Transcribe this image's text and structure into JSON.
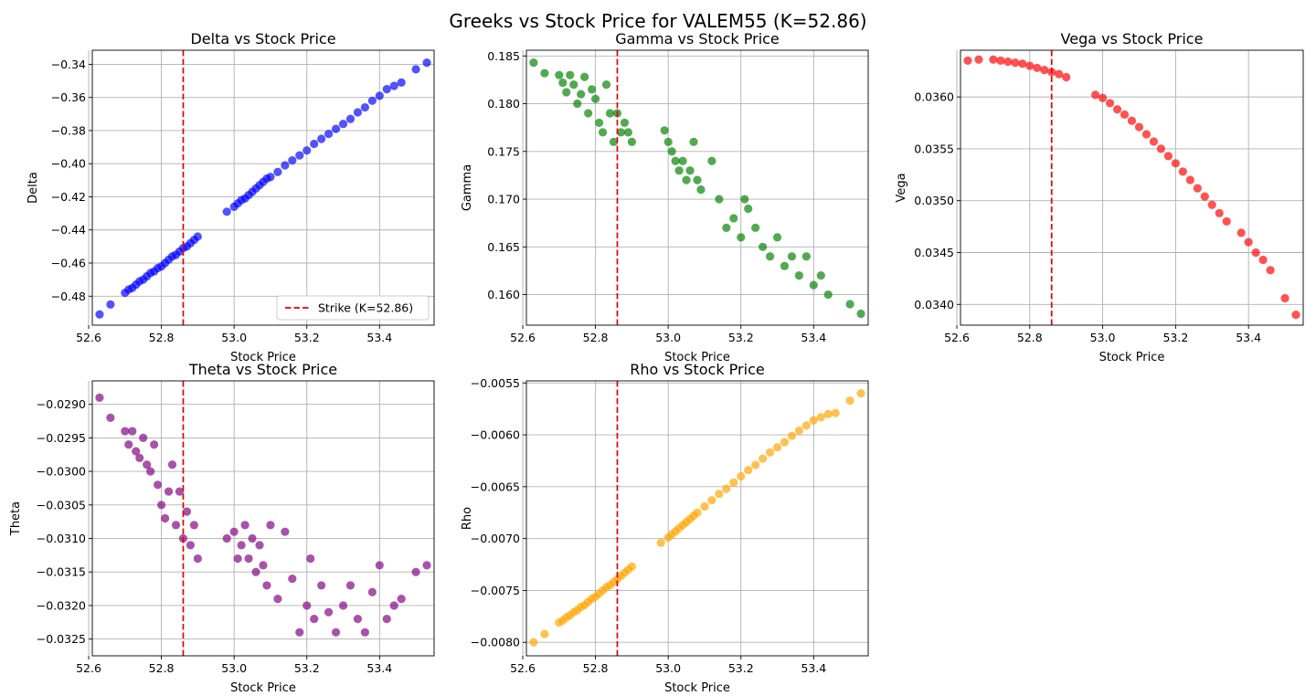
{
  "figure": {
    "title": "Greeks vs Stock Price for VALEM55 (K=52.86)",
    "strike": 52.86,
    "legend_label": "Strike (K=52.86)",
    "legend_location": "lower right"
  },
  "chart_data": [
    {
      "type": "scatter",
      "title": "Delta vs Stock Price",
      "xlabel": "Stock Price",
      "ylabel": "Delta",
      "color": "#0000ff",
      "xlim": [
        52.61,
        53.55
      ],
      "ylim": [
        -0.4975,
        -0.3315
      ],
      "xticks": [
        52.6,
        52.8,
        53.0,
        53.2,
        53.4
      ],
      "xtick_labels": [
        "52.6",
        "52.8",
        "53.0",
        "53.2",
        "53.4"
      ],
      "yticks": [
        -0.48,
        -0.46,
        -0.44,
        -0.42,
        -0.4,
        -0.38,
        -0.36,
        -0.34
      ],
      "ytick_labels": [
        "−0.48",
        "−0.46",
        "−0.44",
        "−0.42",
        "−0.40",
        "−0.38",
        "−0.36",
        "−0.34"
      ],
      "grid": true,
      "legend": true,
      "points": [
        [
          52.63,
          -0.491
        ],
        [
          52.66,
          -0.485
        ],
        [
          52.7,
          -0.478
        ],
        [
          52.71,
          -0.476
        ],
        [
          52.72,
          -0.475
        ],
        [
          52.73,
          -0.473
        ],
        [
          52.74,
          -0.471
        ],
        [
          52.75,
          -0.47
        ],
        [
          52.76,
          -0.468
        ],
        [
          52.77,
          -0.466
        ],
        [
          52.78,
          -0.465
        ],
        [
          52.79,
          -0.463
        ],
        [
          52.8,
          -0.462
        ],
        [
          52.81,
          -0.46
        ],
        [
          52.82,
          -0.458
        ],
        [
          52.83,
          -0.456
        ],
        [
          52.84,
          -0.455
        ],
        [
          52.85,
          -0.453
        ],
        [
          52.86,
          -0.451
        ],
        [
          52.87,
          -0.45
        ],
        [
          52.88,
          -0.448
        ],
        [
          52.89,
          -0.446
        ],
        [
          52.9,
          -0.444
        ],
        [
          52.98,
          -0.429
        ],
        [
          53.0,
          -0.426
        ],
        [
          53.01,
          -0.424
        ],
        [
          53.02,
          -0.422
        ],
        [
          53.03,
          -0.421
        ],
        [
          53.04,
          -0.419
        ],
        [
          53.05,
          -0.417
        ],
        [
          53.06,
          -0.415
        ],
        [
          53.07,
          -0.413
        ],
        [
          53.08,
          -0.411
        ],
        [
          53.09,
          -0.409
        ],
        [
          53.1,
          -0.408
        ],
        [
          53.12,
          -0.405
        ],
        [
          53.14,
          -0.401
        ],
        [
          53.16,
          -0.398
        ],
        [
          53.18,
          -0.395
        ],
        [
          53.2,
          -0.392
        ],
        [
          53.22,
          -0.388
        ],
        [
          53.24,
          -0.385
        ],
        [
          53.26,
          -0.382
        ],
        [
          53.28,
          -0.379
        ],
        [
          53.3,
          -0.376
        ],
        [
          53.32,
          -0.373
        ],
        [
          53.34,
          -0.369
        ],
        [
          53.36,
          -0.366
        ],
        [
          53.38,
          -0.362
        ],
        [
          53.4,
          -0.359
        ],
        [
          53.42,
          -0.355
        ],
        [
          53.44,
          -0.353
        ],
        [
          53.46,
          -0.351
        ],
        [
          53.5,
          -0.343
        ],
        [
          53.53,
          -0.339
        ]
      ]
    },
    {
      "type": "scatter",
      "title": "Gamma vs Stock Price",
      "xlabel": "Stock Price",
      "ylabel": "Gamma",
      "color": "#008000",
      "xlim": [
        52.61,
        53.55
      ],
      "ylim": [
        0.1568,
        0.1856
      ],
      "xticks": [
        52.6,
        52.8,
        53.0,
        53.2,
        53.4
      ],
      "xtick_labels": [
        "52.6",
        "52.8",
        "53.0",
        "53.2",
        "53.4"
      ],
      "yticks": [
        0.16,
        0.165,
        0.17,
        0.175,
        0.18,
        0.185
      ],
      "ytick_labels": [
        "0.160",
        "0.165",
        "0.170",
        "0.175",
        "0.180",
        "0.185"
      ],
      "grid": true,
      "legend": false,
      "points": [
        [
          52.63,
          0.1843
        ],
        [
          52.66,
          0.1832
        ],
        [
          52.7,
          0.183
        ],
        [
          52.71,
          0.1822
        ],
        [
          52.72,
          0.1812
        ],
        [
          52.73,
          0.183
        ],
        [
          52.74,
          0.182
        ],
        [
          52.75,
          0.18
        ],
        [
          52.76,
          0.181
        ],
        [
          52.77,
          0.1828
        ],
        [
          52.78,
          0.179
        ],
        [
          52.79,
          0.1815
        ],
        [
          52.8,
          0.1805
        ],
        [
          52.81,
          0.178
        ],
        [
          52.82,
          0.177
        ],
        [
          52.83,
          0.182
        ],
        [
          52.84,
          0.179
        ],
        [
          52.85,
          0.176
        ],
        [
          52.86,
          0.179
        ],
        [
          52.87,
          0.177
        ],
        [
          52.88,
          0.178
        ],
        [
          52.89,
          0.177
        ],
        [
          52.9,
          0.176
        ],
        [
          52.99,
          0.1772
        ],
        [
          53.0,
          0.176
        ],
        [
          53.01,
          0.175
        ],
        [
          53.02,
          0.174
        ],
        [
          53.03,
          0.173
        ],
        [
          53.04,
          0.174
        ],
        [
          53.05,
          0.172
        ],
        [
          53.06,
          0.173
        ],
        [
          53.07,
          0.176
        ],
        [
          53.08,
          0.172
        ],
        [
          53.09,
          0.171
        ],
        [
          53.12,
          0.174
        ],
        [
          53.14,
          0.17
        ],
        [
          53.16,
          0.167
        ],
        [
          53.18,
          0.168
        ],
        [
          53.2,
          0.166
        ],
        [
          53.21,
          0.17
        ],
        [
          53.22,
          0.169
        ],
        [
          53.24,
          0.167
        ],
        [
          53.26,
          0.165
        ],
        [
          53.28,
          0.164
        ],
        [
          53.3,
          0.166
        ],
        [
          53.32,
          0.163
        ],
        [
          53.34,
          0.164
        ],
        [
          53.36,
          0.162
        ],
        [
          53.38,
          0.164
        ],
        [
          53.4,
          0.161
        ],
        [
          53.42,
          0.162
        ],
        [
          53.44,
          0.16
        ],
        [
          53.5,
          0.159
        ],
        [
          53.53,
          0.158
        ]
      ]
    },
    {
      "type": "scatter",
      "title": "Vega vs Stock Price",
      "xlabel": "Stock Price",
      "ylabel": "Vega",
      "color": "#ff0000",
      "xlim": [
        52.61,
        53.55
      ],
      "ylim": [
        0.0338,
        0.03645
      ],
      "xticks": [
        52.6,
        52.8,
        53.0,
        53.2,
        53.4
      ],
      "xtick_labels": [
        "52.6",
        "52.8",
        "53.0",
        "53.2",
        "53.4"
      ],
      "yticks": [
        0.034,
        0.0345,
        0.035,
        0.0355,
        0.036
      ],
      "ytick_labels": [
        "0.0340",
        "0.0345",
        "0.0350",
        "0.0355",
        "0.0360"
      ],
      "grid": true,
      "legend": false,
      "points": [
        [
          52.63,
          0.03635
        ],
        [
          52.66,
          0.03636
        ],
        [
          52.7,
          0.03636
        ],
        [
          52.72,
          0.03635
        ],
        [
          52.74,
          0.03634
        ],
        [
          52.76,
          0.03633
        ],
        [
          52.78,
          0.03632
        ],
        [
          52.8,
          0.0363
        ],
        [
          52.82,
          0.03628
        ],
        [
          52.84,
          0.03626
        ],
        [
          52.86,
          0.03624
        ],
        [
          52.88,
          0.03622
        ],
        [
          52.9,
          0.03619
        ],
        [
          52.98,
          0.03602
        ],
        [
          53.0,
          0.03599
        ],
        [
          53.02,
          0.03594
        ],
        [
          53.04,
          0.03588
        ],
        [
          53.06,
          0.03583
        ],
        [
          53.08,
          0.03577
        ],
        [
          53.1,
          0.03571
        ],
        [
          53.12,
          0.03564
        ],
        [
          53.14,
          0.03557
        ],
        [
          53.16,
          0.0355
        ],
        [
          53.18,
          0.03543
        ],
        [
          53.2,
          0.03536
        ],
        [
          53.22,
          0.03528
        ],
        [
          53.24,
          0.0352
        ],
        [
          53.26,
          0.03512
        ],
        [
          53.28,
          0.03504
        ],
        [
          53.3,
          0.03496
        ],
        [
          53.32,
          0.03488
        ],
        [
          53.34,
          0.0348
        ],
        [
          53.38,
          0.03469
        ],
        [
          53.4,
          0.0346
        ],
        [
          53.42,
          0.0345
        ],
        [
          53.44,
          0.03443
        ],
        [
          53.46,
          0.03433
        ],
        [
          53.5,
          0.03406
        ],
        [
          53.53,
          0.0339
        ]
      ]
    },
    {
      "type": "scatter",
      "title": "Theta vs Stock Price",
      "xlabel": "Stock Price",
      "ylabel": "Theta",
      "color": "#800080",
      "xlim": [
        52.61,
        53.55
      ],
      "ylim": [
        -0.03275,
        -0.02865
      ],
      "xticks": [
        52.6,
        52.8,
        53.0,
        53.2,
        53.4
      ],
      "xtick_labels": [
        "52.6",
        "52.8",
        "53.0",
        "53.2",
        "53.4"
      ],
      "yticks": [
        -0.0325,
        -0.032,
        -0.0315,
        -0.031,
        -0.0305,
        -0.03,
        -0.0295,
        -0.029
      ],
      "ytick_labels": [
        "−0.0325",
        "−0.0320",
        "−0.0315",
        "−0.0310",
        "−0.0305",
        "−0.0300",
        "−0.0295",
        "−0.0290"
      ],
      "grid": true,
      "legend": false,
      "points": [
        [
          52.63,
          -0.0289
        ],
        [
          52.66,
          -0.0292
        ],
        [
          52.7,
          -0.0294
        ],
        [
          52.71,
          -0.0296
        ],
        [
          52.72,
          -0.0294
        ],
        [
          52.73,
          -0.0297
        ],
        [
          52.74,
          -0.0298
        ],
        [
          52.75,
          -0.0295
        ],
        [
          52.76,
          -0.0299
        ],
        [
          52.77,
          -0.03
        ],
        [
          52.78,
          -0.0296
        ],
        [
          52.79,
          -0.0302
        ],
        [
          52.8,
          -0.0305
        ],
        [
          52.81,
          -0.0307
        ],
        [
          52.82,
          -0.0303
        ],
        [
          52.83,
          -0.0299
        ],
        [
          52.84,
          -0.0308
        ],
        [
          52.85,
          -0.0303
        ],
        [
          52.86,
          -0.031
        ],
        [
          52.87,
          -0.0306
        ],
        [
          52.88,
          -0.0311
        ],
        [
          52.89,
          -0.0308
        ],
        [
          52.9,
          -0.0313
        ],
        [
          52.98,
          -0.031
        ],
        [
          53.0,
          -0.0309
        ],
        [
          53.01,
          -0.0313
        ],
        [
          53.02,
          -0.0311
        ],
        [
          53.03,
          -0.0308
        ],
        [
          53.04,
          -0.0313
        ],
        [
          53.05,
          -0.031
        ],
        [
          53.06,
          -0.0315
        ],
        [
          53.07,
          -0.0311
        ],
        [
          53.08,
          -0.0314
        ],
        [
          53.09,
          -0.0317
        ],
        [
          53.1,
          -0.0308
        ],
        [
          53.12,
          -0.0319
        ],
        [
          53.14,
          -0.0309
        ],
        [
          53.16,
          -0.0316
        ],
        [
          53.18,
          -0.0324
        ],
        [
          53.2,
          -0.032
        ],
        [
          53.21,
          -0.0313
        ],
        [
          53.22,
          -0.0322
        ],
        [
          53.24,
          -0.0317
        ],
        [
          53.26,
          -0.0321
        ],
        [
          53.28,
          -0.0324
        ],
        [
          53.3,
          -0.032
        ],
        [
          53.32,
          -0.0317
        ],
        [
          53.34,
          -0.0322
        ],
        [
          53.36,
          -0.0324
        ],
        [
          53.38,
          -0.0318
        ],
        [
          53.4,
          -0.0314
        ],
        [
          53.42,
          -0.0322
        ],
        [
          53.44,
          -0.032
        ],
        [
          53.46,
          -0.0319
        ],
        [
          53.5,
          -0.0315
        ],
        [
          53.53,
          -0.0314
        ]
      ]
    },
    {
      "type": "scatter",
      "title": "Rho vs Stock Price",
      "xlabel": "Stock Price",
      "ylabel": "Rho",
      "color": "#ffa500",
      "xlim": [
        52.61,
        53.55
      ],
      "ylim": [
        -0.00813,
        -0.00548
      ],
      "xticks": [
        52.6,
        52.8,
        53.0,
        53.2,
        53.4
      ],
      "xtick_labels": [
        "52.6",
        "52.8",
        "53.0",
        "53.2",
        "53.4"
      ],
      "yticks": [
        -0.008,
        -0.0075,
        -0.007,
        -0.0065,
        -0.006,
        -0.0055
      ],
      "ytick_labels": [
        "−0.0080",
        "−0.0075",
        "−0.0070",
        "−0.0065",
        "−0.0060",
        "−0.0055"
      ],
      "grid": true,
      "legend": false,
      "points": [
        [
          52.63,
          -0.008
        ],
        [
          52.66,
          -0.00792
        ],
        [
          52.7,
          -0.00781
        ],
        [
          52.71,
          -0.00779
        ],
        [
          52.72,
          -0.00776
        ],
        [
          52.73,
          -0.00774
        ],
        [
          52.74,
          -0.00771
        ],
        [
          52.75,
          -0.00769
        ],
        [
          52.76,
          -0.00766
        ],
        [
          52.77,
          -0.00764
        ],
        [
          52.78,
          -0.00761
        ],
        [
          52.79,
          -0.00758
        ],
        [
          52.8,
          -0.00756
        ],
        [
          52.81,
          -0.00753
        ],
        [
          52.82,
          -0.0075
        ],
        [
          52.83,
          -0.00747
        ],
        [
          52.84,
          -0.00745
        ],
        [
          52.85,
          -0.00742
        ],
        [
          52.86,
          -0.00739
        ],
        [
          52.87,
          -0.00736
        ],
        [
          52.88,
          -0.00733
        ],
        [
          52.89,
          -0.0073
        ],
        [
          52.9,
          -0.00727
        ],
        [
          52.98,
          -0.00704
        ],
        [
          53.0,
          -0.00699
        ],
        [
          53.01,
          -0.00696
        ],
        [
          53.02,
          -0.00693
        ],
        [
          53.03,
          -0.0069
        ],
        [
          53.04,
          -0.00687
        ],
        [
          53.05,
          -0.00684
        ],
        [
          53.06,
          -0.00681
        ],
        [
          53.07,
          -0.00678
        ],
        [
          53.08,
          -0.00675
        ],
        [
          53.1,
          -0.00669
        ],
        [
          53.12,
          -0.00663
        ],
        [
          53.14,
          -0.00657
        ],
        [
          53.16,
          -0.00652
        ],
        [
          53.18,
          -0.00646
        ],
        [
          53.2,
          -0.0064
        ],
        [
          53.22,
          -0.00634
        ],
        [
          53.24,
          -0.00629
        ],
        [
          53.26,
          -0.00623
        ],
        [
          53.28,
          -0.00617
        ],
        [
          53.3,
          -0.00612
        ],
        [
          53.32,
          -0.00607
        ],
        [
          53.34,
          -0.00601
        ],
        [
          53.36,
          -0.00596
        ],
        [
          53.38,
          -0.00591
        ],
        [
          53.4,
          -0.00586
        ],
        [
          53.42,
          -0.00583
        ],
        [
          53.44,
          -0.0058
        ],
        [
          53.46,
          -0.00579
        ],
        [
          53.5,
          -0.00567
        ],
        [
          53.53,
          -0.0056
        ]
      ]
    }
  ]
}
